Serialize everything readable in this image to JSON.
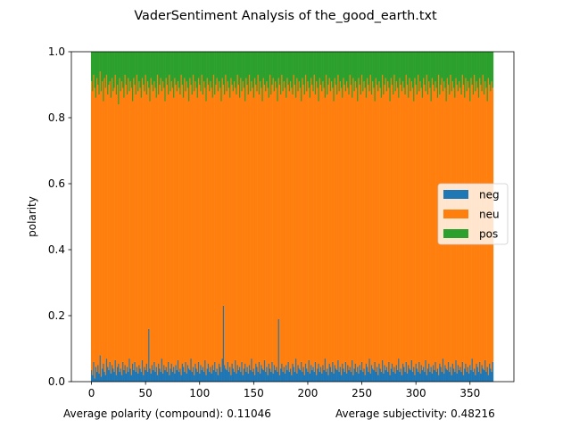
{
  "chart_data": {
    "type": "bar",
    "stacked": true,
    "title": "VaderSentiment Analysis of the_good_earth.txt",
    "xlabel": "",
    "ylabel": "polarity",
    "xlim": [
      -18.6,
      390.6
    ],
    "ylim": [
      0,
      1
    ],
    "xticks": [
      0,
      50,
      100,
      150,
      200,
      250,
      300,
      350
    ],
    "xtick_labels": [
      "0",
      "50",
      "100",
      "150",
      "200",
      "250",
      "300",
      "350"
    ],
    "yticks": [
      0,
      0.2,
      0.4,
      0.6,
      0.8,
      1.0
    ],
    "ytick_labels": [
      "0.0",
      "0.2",
      "0.4",
      "0.6",
      "0.8",
      "1.0"
    ],
    "grid": false,
    "legend_position": "center-right",
    "n_points": 372,
    "series": [
      {
        "name": "neg",
        "color": "#1f77b4",
        "values": [
          0.035,
          0.02,
          0.06,
          0.01,
          0.045,
          0.03,
          0.05,
          0.025,
          0.08,
          0.015,
          0.04,
          0.055,
          0.03,
          0.02,
          0.07,
          0.045,
          0.035,
          0.06,
          0.025,
          0.05,
          0.04,
          0.03,
          0.065,
          0.02,
          0.045,
          0.055,
          0.03,
          0.04,
          0.02,
          0.06,
          0.035,
          0.05,
          0.025,
          0.045,
          0.03,
          0.07,
          0.04,
          0.02,
          0.055,
          0.035,
          0.06,
          0.03,
          0.045,
          0.025,
          0.05,
          0.04,
          0.03,
          0.065,
          0.02,
          0.045,
          0.035,
          0.055,
          0.03,
          0.16,
          0.04,
          0.025,
          0.05,
          0.035,
          0.06,
          0.03,
          0.045,
          0.02,
          0.055,
          0.04,
          0.03,
          0.07,
          0.025,
          0.05,
          0.035,
          0.045,
          0.03,
          0.06,
          0.02,
          0.04,
          0.055,
          0.03,
          0.045,
          0.025,
          0.05,
          0.035,
          0.065,
          0.03,
          0.04,
          0.02,
          0.055,
          0.045,
          0.03,
          0.06,
          0.025,
          0.05,
          0.04,
          0.035,
          0.07,
          0.03,
          0.045,
          0.02,
          0.055,
          0.04,
          0.03,
          0.06,
          0.025,
          0.05,
          0.035,
          0.045,
          0.03,
          0.065,
          0.02,
          0.04,
          0.055,
          0.03,
          0.045,
          0.025,
          0.05,
          0.035,
          0.06,
          0.03,
          0.04,
          0.02,
          0.055,
          0.045,
          0.03,
          0.07,
          0.23,
          0.05,
          0.04,
          0.035,
          0.06,
          0.03,
          0.045,
          0.02,
          0.055,
          0.04,
          0.03,
          0.065,
          0.025,
          0.05,
          0.035,
          0.045,
          0.03,
          0.06,
          0.02,
          0.04,
          0.055,
          0.03,
          0.045,
          0.025,
          0.05,
          0.035,
          0.07,
          0.03,
          0.04,
          0.02,
          0.055,
          0.045,
          0.03,
          0.06,
          0.025,
          0.05,
          0.04,
          0.035,
          0.065,
          0.03,
          0.045,
          0.02,
          0.055,
          0.04,
          0.03,
          0.06,
          0.025,
          0.05,
          0.035,
          0.045,
          0.03,
          0.19,
          0.02,
          0.04,
          0.055,
          0.03,
          0.045,
          0.025,
          0.05,
          0.035,
          0.06,
          0.03,
          0.04,
          0.02,
          0.055,
          0.045,
          0.03,
          0.07,
          0.025,
          0.05,
          0.04,
          0.035,
          0.06,
          0.03,
          0.045,
          0.02,
          0.055,
          0.04,
          0.03,
          0.065,
          0.025,
          0.05,
          0.035,
          0.045,
          0.03,
          0.06,
          0.02,
          0.04,
          0.055,
          0.03,
          0.045,
          0.025,
          0.05,
          0.035,
          0.07,
          0.03,
          0.04,
          0.02,
          0.055,
          0.045,
          0.03,
          0.06,
          0.025,
          0.05,
          0.04,
          0.035,
          0.065,
          0.03,
          0.045,
          0.02,
          0.055,
          0.04,
          0.03,
          0.06,
          0.025,
          0.05,
          0.035,
          0.045,
          0.03,
          0.065,
          0.02,
          0.04,
          0.055,
          0.03,
          0.045,
          0.025,
          0.05,
          0.035,
          0.06,
          0.03,
          0.04,
          0.02,
          0.055,
          0.045,
          0.03,
          0.07,
          0.025,
          0.05,
          0.04,
          0.035,
          0.06,
          0.03,
          0.045,
          0.02,
          0.055,
          0.04,
          0.03,
          0.065,
          0.025,
          0.05,
          0.035,
          0.045,
          0.03,
          0.06,
          0.02,
          0.04,
          0.055,
          0.03,
          0.045,
          0.025,
          0.05,
          0.035,
          0.07,
          0.03,
          0.04,
          0.02,
          0.055,
          0.045,
          0.03,
          0.06,
          0.025,
          0.05,
          0.04,
          0.035,
          0.065,
          0.03,
          0.045,
          0.02,
          0.055,
          0.04,
          0.03,
          0.06,
          0.025,
          0.05,
          0.035,
          0.045,
          0.03,
          0.065,
          0.02,
          0.04,
          0.055,
          0.03,
          0.045,
          0.025,
          0.05,
          0.035,
          0.06,
          0.03,
          0.04,
          0.02,
          0.055,
          0.045,
          0.03,
          0.07,
          0.025,
          0.05,
          0.04,
          0.035,
          0.06,
          0.03,
          0.045,
          0.02,
          0.055,
          0.04,
          0.03,
          0.065,
          0.025,
          0.05,
          0.035,
          0.045,
          0.03,
          0.06,
          0.02,
          0.04,
          0.055,
          0.03,
          0.045,
          0.025,
          0.05,
          0.035,
          0.07,
          0.03,
          0.04,
          0.02,
          0.055,
          0.045,
          0.03,
          0.06,
          0.025,
          0.05,
          0.04,
          0.035,
          0.065,
          0.03,
          0.045,
          0.02,
          0.055,
          0.04,
          0.03,
          0.06,
          0.025,
          0.05,
          0.035,
          0.045
        ]
      },
      {
        "name": "neu",
        "color": "#ff7f0e",
        "values": "stacked-remainder"
      },
      {
        "name": "pos",
        "color": "#2ca02c",
        "values": [
          0.09,
          0.12,
          0.07,
          0.11,
          0.14,
          0.08,
          0.1,
          0.13,
          0.06,
          0.12,
          0.09,
          0.15,
          0.08,
          0.11,
          0.07,
          0.13,
          0.1,
          0.09,
          0.14,
          0.08,
          0.12,
          0.11,
          0.07,
          0.13,
          0.1,
          0.16,
          0.08,
          0.12,
          0.09,
          0.11,
          0.14,
          0.07,
          0.1,
          0.13,
          0.08,
          0.12,
          0.09,
          0.11,
          0.15,
          0.08,
          0.1,
          0.13,
          0.07,
          0.12,
          0.09,
          0.11,
          0.14,
          0.08,
          0.1,
          0.12,
          0.07,
          0.13,
          0.09,
          0.11,
          0.15,
          0.08,
          0.1,
          0.12,
          0.09,
          0.11,
          0.14,
          0.07,
          0.13,
          0.1,
          0.08,
          0.12,
          0.09,
          0.11,
          0.15,
          0.08,
          0.1,
          0.13,
          0.07,
          0.12,
          0.09,
          0.11,
          0.14,
          0.08,
          0.1,
          0.12,
          0.09,
          0.11,
          0.13,
          0.07,
          0.1,
          0.14,
          0.08,
          0.12,
          0.09,
          0.11,
          0.15,
          0.08,
          0.1,
          0.13,
          0.07,
          0.12,
          0.09,
          0.11,
          0.14,
          0.08,
          0.1,
          0.12,
          0.07,
          0.13,
          0.09,
          0.11,
          0.15,
          0.08,
          0.1,
          0.12,
          0.09,
          0.11,
          0.14,
          0.07,
          0.13,
          0.1,
          0.08,
          0.12,
          0.09,
          0.11,
          0.15,
          0.08,
          0.1,
          0.13,
          0.07,
          0.12,
          0.09,
          0.11,
          0.14,
          0.08,
          0.1,
          0.12,
          0.09,
          0.11,
          0.13,
          0.07,
          0.1,
          0.14,
          0.08,
          0.12,
          0.09,
          0.11,
          0.15,
          0.08,
          0.1,
          0.13,
          0.07,
          0.12,
          0.09,
          0.11,
          0.14,
          0.08,
          0.1,
          0.12,
          0.07,
          0.13,
          0.09,
          0.11,
          0.15,
          0.08,
          0.1,
          0.12,
          0.09,
          0.11,
          0.14,
          0.07,
          0.13,
          0.1,
          0.08,
          0.12,
          0.09,
          0.11,
          0.15,
          0.08,
          0.1,
          0.13,
          0.07,
          0.12,
          0.09,
          0.11,
          0.14,
          0.08,
          0.1,
          0.12,
          0.09,
          0.11,
          0.13,
          0.07,
          0.1,
          0.14,
          0.08,
          0.12,
          0.09,
          0.11,
          0.15,
          0.08,
          0.1,
          0.13,
          0.07,
          0.12,
          0.09,
          0.11,
          0.14,
          0.08,
          0.1,
          0.12,
          0.07,
          0.13,
          0.09,
          0.11,
          0.15,
          0.08,
          0.1,
          0.12,
          0.09,
          0.11,
          0.14,
          0.07,
          0.13,
          0.1,
          0.08,
          0.12,
          0.09,
          0.11,
          0.15,
          0.08,
          0.1,
          0.13,
          0.07,
          0.12,
          0.09,
          0.11,
          0.14,
          0.08,
          0.1,
          0.12,
          0.09,
          0.11,
          0.13,
          0.07,
          0.1,
          0.14,
          0.08,
          0.12,
          0.09,
          0.11,
          0.15,
          0.08,
          0.1,
          0.13,
          0.07,
          0.12,
          0.09,
          0.11,
          0.14,
          0.08,
          0.1,
          0.12,
          0.07,
          0.13,
          0.09,
          0.11,
          0.15,
          0.08,
          0.1,
          0.12,
          0.09,
          0.11,
          0.14,
          0.07,
          0.13,
          0.1,
          0.08,
          0.12,
          0.09,
          0.11,
          0.15,
          0.08,
          0.1,
          0.13,
          0.07,
          0.12,
          0.09,
          0.11,
          0.14,
          0.08,
          0.1,
          0.12,
          0.09,
          0.11,
          0.13,
          0.07,
          0.1,
          0.14,
          0.08,
          0.12,
          0.09,
          0.11,
          0.15,
          0.08,
          0.1,
          0.13,
          0.07,
          0.12,
          0.09,
          0.11,
          0.14,
          0.08,
          0.1,
          0.12,
          0.07,
          0.13,
          0.09,
          0.11,
          0.15,
          0.08,
          0.1,
          0.12,
          0.09,
          0.11,
          0.14,
          0.07,
          0.13,
          0.1,
          0.08,
          0.12,
          0.09,
          0.11,
          0.15,
          0.08,
          0.1,
          0.13,
          0.07,
          0.12,
          0.09,
          0.11,
          0.14,
          0.08,
          0.1,
          0.12,
          0.09,
          0.11,
          0.13,
          0.07,
          0.1,
          0.14,
          0.08,
          0.12,
          0.09,
          0.11,
          0.15,
          0.08,
          0.1,
          0.13,
          0.07,
          0.12,
          0.09,
          0.11,
          0.14,
          0.08,
          0.1,
          0.12,
          0.07,
          0.13,
          0.09,
          0.11,
          0.15,
          0.08,
          0.1,
          0.12,
          0.09,
          0.11,
          0.14,
          0.07,
          0.13,
          0.1,
          0.08,
          0.12,
          0.09,
          0.11,
          0.15,
          0.08,
          0.1,
          0.13,
          0.07
        ]
      }
    ]
  },
  "footer": {
    "avg_polarity": "Average polarity (compound): 0.11046",
    "avg_subjectivity": "Average subjectivity: 0.48216"
  }
}
